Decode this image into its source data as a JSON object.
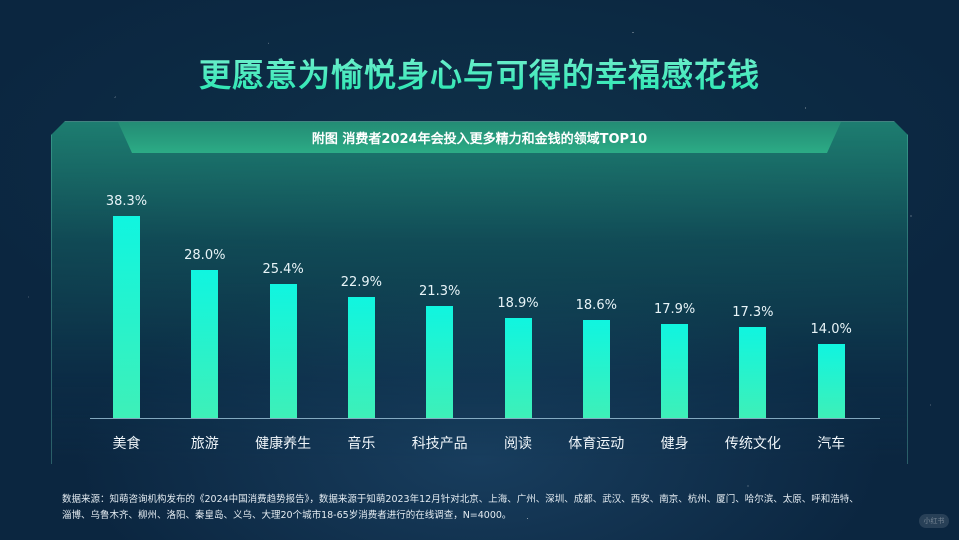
{
  "page": {
    "title": "更愿意为愉悦身心与可得的幸福感花钱",
    "subtitle": "附图  消费者2024年会投入更多精力和金钱的领域TOP10",
    "source_line1": "数据来源：知萌咨询机构发布的《2024中国消费趋势报告》，数据来源于知萌2023年12月针对北京、上海、广州、深圳、成都、武汉、西安、南京、杭州、厦门、哈尔滨、太原、呼和浩特、",
    "source_line2": "淄博、乌鲁木齐、柳州、洛阳、秦皇岛、义乌、大理20个城市18-65岁消费者进行的在线调查，N=4000。",
    "watermark": "小红书"
  },
  "colors": {
    "background": "#0b2640",
    "title": "#3fe8b8",
    "bar_top": "#10f5e0",
    "bar_bottom": "#3ef0b8",
    "axis": "#aad2e6"
  },
  "chart_data": {
    "type": "bar",
    "title": "附图  消费者2024年会投入更多精力和金钱的领域TOP10",
    "categories": [
      "美食",
      "旅游",
      "健康养生",
      "音乐",
      "科技产品",
      "阅读",
      "体育运动",
      "健身",
      "传统文化",
      "汽车"
    ],
    "values": [
      38.3,
      28.0,
      25.4,
      22.9,
      21.3,
      18.9,
      18.6,
      17.9,
      17.3,
      14.0
    ],
    "value_labels": [
      "38.3%",
      "28.0%",
      "25.4%",
      "22.9%",
      "21.3%",
      "18.9%",
      "18.6%",
      "17.9%",
      "17.3%",
      "14.0%"
    ],
    "xlabel": "",
    "ylabel": "",
    "unit": "%",
    "ylim": [
      0,
      40
    ],
    "grid": false,
    "legend": "none"
  }
}
